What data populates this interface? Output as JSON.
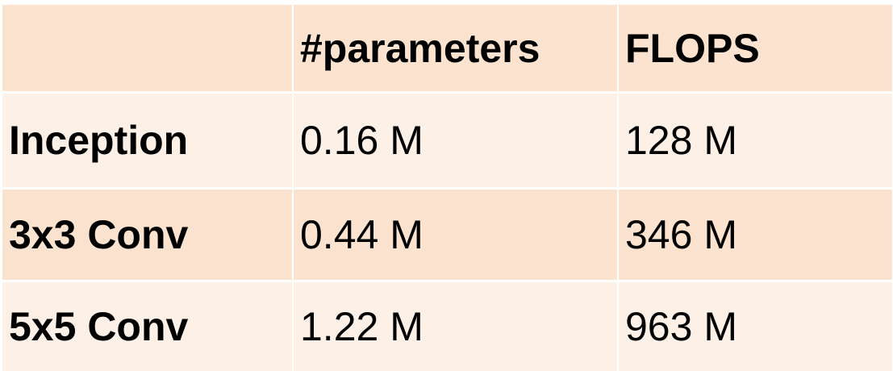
{
  "table": {
    "columns": [
      "",
      "#parameters",
      "FLOPS"
    ],
    "rows": [
      {
        "label": "Inception",
        "params": "0.16 M",
        "flops": "128 M"
      },
      {
        "label": "3x3 Conv",
        "params": "0.44 M",
        "flops": "346 M"
      },
      {
        "label": "5x5 Conv",
        "params": "1.22 M",
        "flops": "963 M"
      }
    ]
  },
  "colors": {
    "row_dark": "#fce3cf",
    "row_light": "#fdf0e6",
    "text": "#000000"
  }
}
